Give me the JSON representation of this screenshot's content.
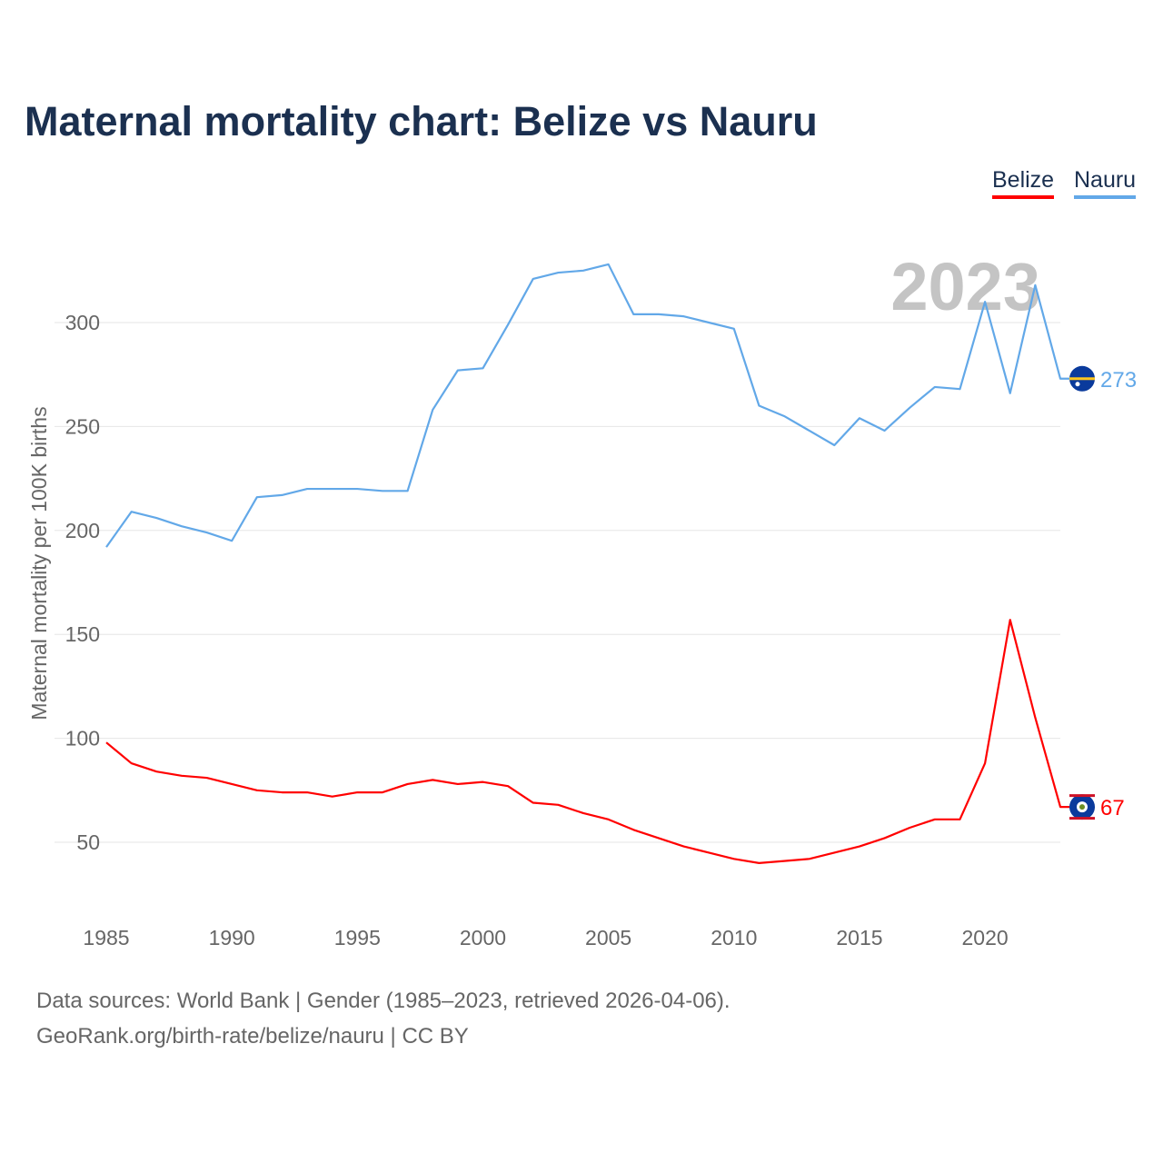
{
  "chart_data": {
    "type": "line",
    "title": "Maternal mortality chart: Belize vs Nauru",
    "xlabel": "",
    "ylabel": "Maternal mortality per 100K births",
    "xlim": [
      1985,
      2023
    ],
    "ylim": [
      20,
      340
    ],
    "x_ticks": [
      1985,
      1990,
      1995,
      2000,
      2005,
      2010,
      2015,
      2020
    ],
    "y_ticks": [
      50,
      100,
      150,
      200,
      250,
      300
    ],
    "grid": true,
    "legend_position": "top-right",
    "year_label": "2023",
    "x": [
      1985,
      1986,
      1987,
      1988,
      1989,
      1990,
      1991,
      1992,
      1993,
      1994,
      1995,
      1996,
      1997,
      1998,
      1999,
      2000,
      2001,
      2002,
      2003,
      2004,
      2005,
      2006,
      2007,
      2008,
      2009,
      2010,
      2011,
      2012,
      2013,
      2014,
      2015,
      2016,
      2017,
      2018,
      2019,
      2020,
      2021,
      2022,
      2023
    ],
    "series": [
      {
        "name": "Belize",
        "color": "#ff0000",
        "end_label": "67",
        "values": [
          98,
          88,
          84,
          82,
          81,
          78,
          75,
          74,
          74,
          72,
          74,
          74,
          78,
          80,
          78,
          79,
          77,
          69,
          68,
          64,
          61,
          56,
          52,
          48,
          45,
          42,
          40,
          41,
          42,
          45,
          48,
          52,
          57,
          61,
          61,
          88,
          157,
          110,
          67
        ]
      },
      {
        "name": "Nauru",
        "color": "#62a8e8",
        "end_label": "273",
        "values": [
          192,
          209,
          206,
          202,
          199,
          195,
          216,
          217,
          220,
          220,
          220,
          219,
          219,
          258,
          277,
          278,
          299,
          321,
          324,
          325,
          328,
          304,
          304,
          303,
          300,
          297,
          260,
          255,
          248,
          241,
          254,
          248,
          259,
          269,
          268,
          310,
          266,
          318,
          273
        ]
      }
    ]
  },
  "sources": {
    "line1": "Data sources: World Bank | Gender (1985–2023, retrieved 2026-04-06).",
    "line2": "GeoRank.org/birth-rate/belize/nauru | CC BY"
  }
}
